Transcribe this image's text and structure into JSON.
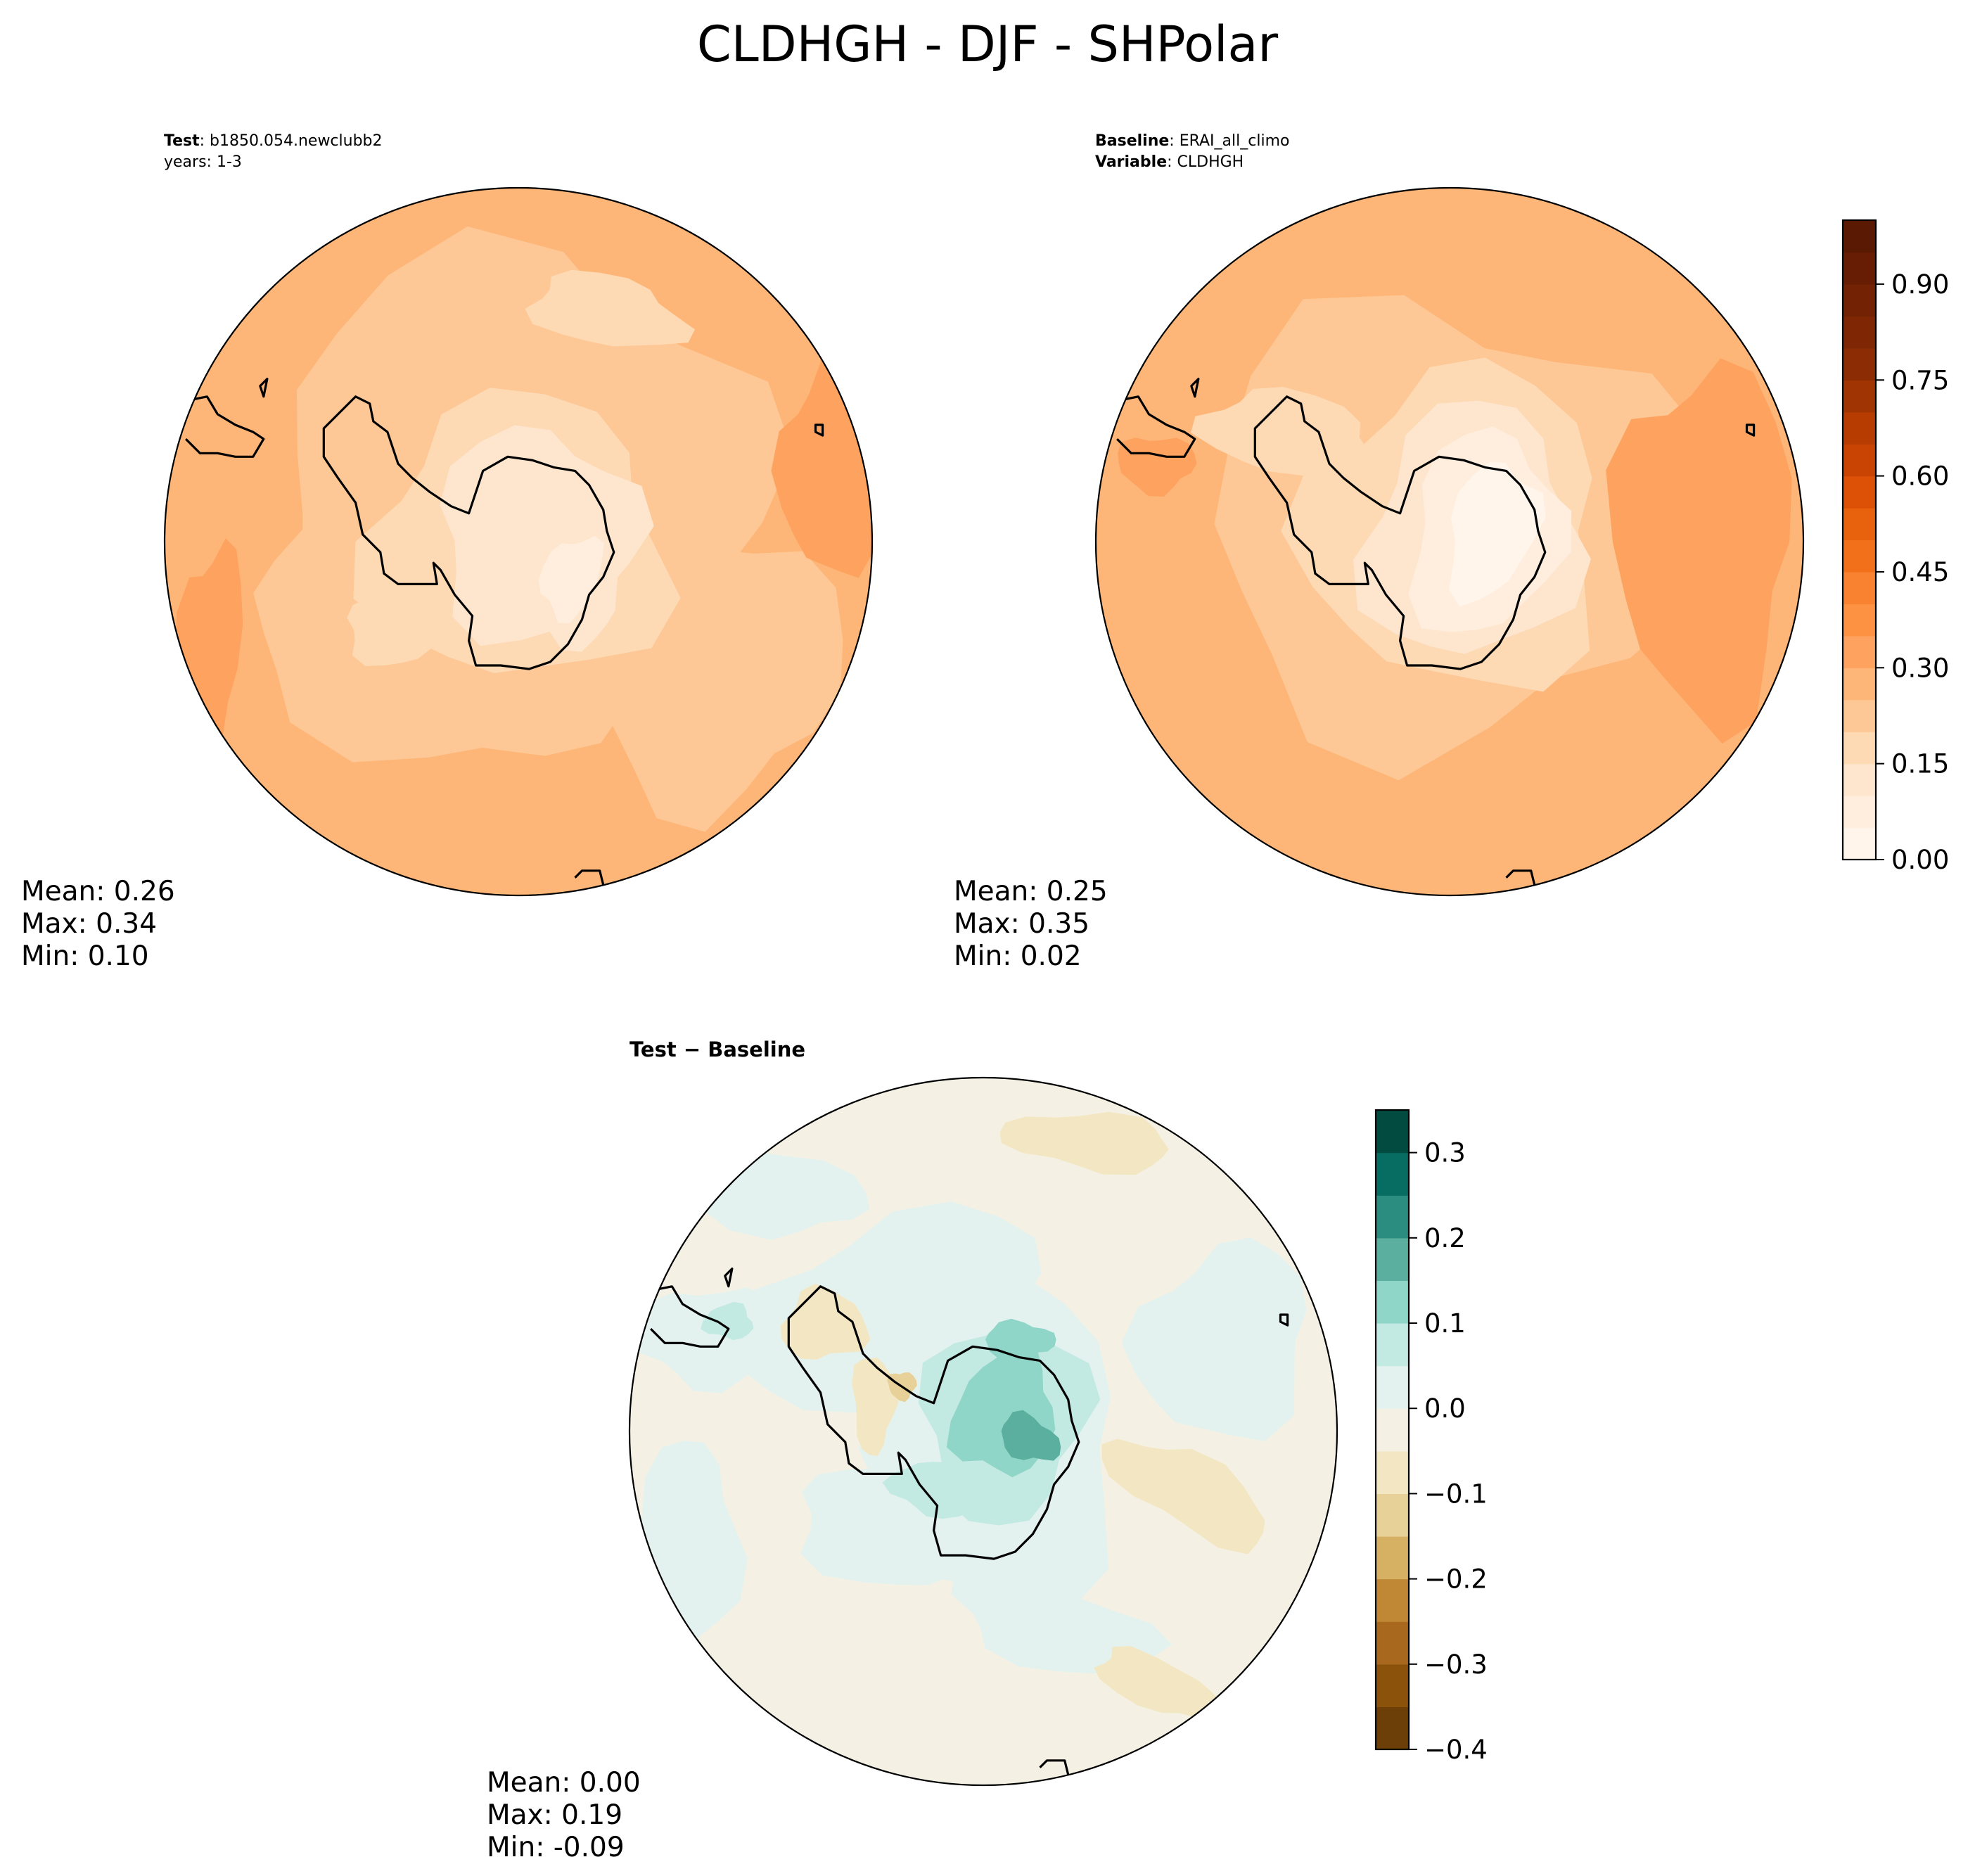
{
  "title": "CLDHGH - DJF - SHPolar",
  "panels": {
    "test": {
      "label_key": "Test",
      "label_value": "b1850.054.newclubb2",
      "years": "years: 1-3",
      "mean": "Mean:  0.26",
      "max": "Max:  0.34",
      "min": "Min:  0.10"
    },
    "baseline": {
      "label_key": "Baseline",
      "label_value": "ERAI_all_climo",
      "variable_key": "Variable",
      "variable_value": "CLDHGH",
      "mean": "Mean:  0.25",
      "max": "Max:  0.35",
      "min": "Min:  0.02"
    },
    "diff": {
      "title": "Test − Baseline",
      "mean": "Mean:  0.00",
      "max": "Max:  0.19",
      "min": "Min: -0.09"
    }
  },
  "chart_data": [
    {
      "type": "heatmap",
      "name": "test",
      "projection": "south-polar-stereographic",
      "variable": "CLDHGH",
      "season": "DJF",
      "field_summary": {
        "mean": 0.26,
        "max": 0.34,
        "min": 0.1
      },
      "colormap": "Oranges",
      "colorbar": {
        "ticks": [
          0.0,
          0.15,
          0.3,
          0.45,
          0.6,
          0.75,
          0.9
        ],
        "tick_labels": [
          "0.00",
          "0.15",
          "0.30",
          "0.45",
          "0.60",
          "0.75",
          "0.90"
        ],
        "range": [
          0.0,
          1.0
        ],
        "levels": 20
      }
    },
    {
      "type": "heatmap",
      "name": "baseline",
      "projection": "south-polar-stereographic",
      "variable": "CLDHGH",
      "season": "DJF",
      "field_summary": {
        "mean": 0.25,
        "max": 0.35,
        "min": 0.02
      },
      "colormap": "Oranges",
      "colorbar": {
        "ticks": [
          0.0,
          0.15,
          0.3,
          0.45,
          0.6,
          0.75,
          0.9
        ],
        "tick_labels": [
          "0.00",
          "0.15",
          "0.30",
          "0.45",
          "0.60",
          "0.75",
          "0.90"
        ],
        "range": [
          0.0,
          1.0
        ],
        "levels": 20
      }
    },
    {
      "type": "heatmap",
      "name": "diff",
      "projection": "south-polar-stereographic",
      "variable": "CLDHGH",
      "season": "DJF",
      "field_summary": {
        "mean": 0.0,
        "max": 0.19,
        "min": -0.09
      },
      "colormap": "BrBG",
      "colorbar": {
        "ticks": [
          -0.4,
          -0.3,
          -0.2,
          -0.1,
          0.0,
          0.1,
          0.2,
          0.3
        ],
        "tick_labels": [
          "−0.4",
          "−0.3",
          "−0.2",
          "−0.1",
          "0.0",
          "0.1",
          "0.2",
          "0.3"
        ],
        "range": [
          -0.4,
          0.35
        ],
        "levels": 15
      }
    }
  ],
  "colors": {
    "oranges": [
      "#fff5eb",
      "#ffeedd",
      "#fee6ce",
      "#fdd9b4",
      "#fdc895",
      "#fdb678",
      "#fda35f",
      "#fd9243",
      "#f98230",
      "#f3701b",
      "#e8610d",
      "#dc5105",
      "#c94303",
      "#b63c02",
      "#a13403",
      "#8c2c04",
      "#7f2704",
      "#732204",
      "#661d03",
      "#5a1903"
    ],
    "brbg": [
      "#6b3f07",
      "#8a520b",
      "#a8691f",
      "#c08735",
      "#d6b063",
      "#e8d198",
      "#f3e6c2",
      "#f4f1e4",
      "#e3f2ef",
      "#c2e9e2",
      "#8fd5c8",
      "#5aaf9f",
      "#2b8c80",
      "#076c61",
      "#014b40"
    ],
    "land": "#000000"
  }
}
